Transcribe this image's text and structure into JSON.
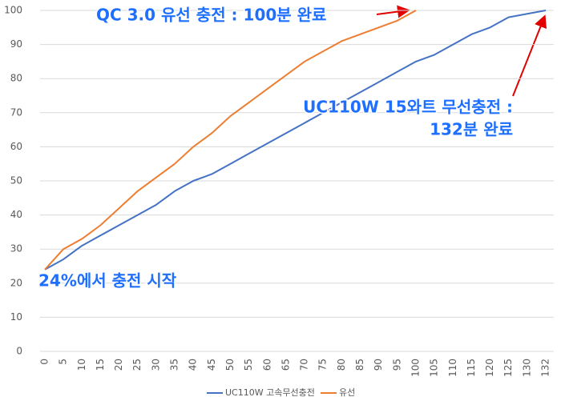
{
  "chart_data": {
    "type": "line",
    "categories": [
      "0",
      "5",
      "10",
      "15",
      "20",
      "25",
      "30",
      "35",
      "40",
      "45",
      "50",
      "55",
      "60",
      "65",
      "70",
      "75",
      "80",
      "85",
      "90",
      "95",
      "100",
      "105",
      "110",
      "115",
      "120",
      "125",
      "130",
      "132"
    ],
    "series": [
      {
        "name": "UC110W 고속무선충전",
        "color": "#4472c4",
        "values": [
          24,
          27,
          31,
          34,
          37,
          40,
          43,
          47,
          50,
          52,
          55,
          58,
          61,
          64,
          67,
          70,
          73,
          76,
          79,
          82,
          85,
          87,
          90,
          93,
          95,
          98,
          99,
          100
        ]
      },
      {
        "name": "유선",
        "color": "#ed7d31",
        "values": [
          24,
          30,
          33,
          37,
          42,
          47,
          51,
          55,
          60,
          64,
          69,
          73,
          77,
          81,
          85,
          88,
          91,
          93,
          95,
          97,
          100,
          null,
          null,
          null,
          null,
          null,
          null,
          null
        ]
      }
    ],
    "ylim": [
      0,
      100
    ],
    "yticks": [
      0,
      10,
      20,
      30,
      40,
      50,
      60,
      70,
      80,
      90,
      100
    ],
    "grid": true,
    "legend": "bottom",
    "annotations": [
      "QC 3.0 유선 충전 : 100분 완료",
      "UC110W 15와트 무선충전 :",
      "132분 완료",
      "24%에서 충전 시작"
    ]
  }
}
